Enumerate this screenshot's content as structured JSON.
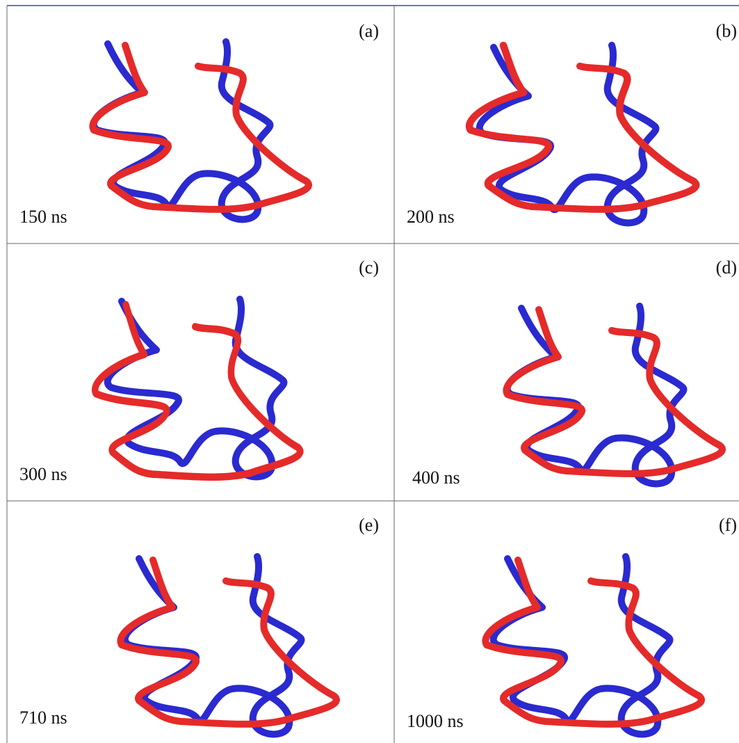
{
  "panels": [
    {
      "label": "(a)",
      "time": "150 ns"
    },
    {
      "label": "(b)",
      "time": "200 ns"
    },
    {
      "label": "(c)",
      "time": "300 ns"
    },
    {
      "label": "(d)",
      "time": "400 ns"
    },
    {
      "label": "(e)",
      "time": "710 ns"
    },
    {
      "label": "(f)",
      "time": "1000 ns"
    }
  ]
}
